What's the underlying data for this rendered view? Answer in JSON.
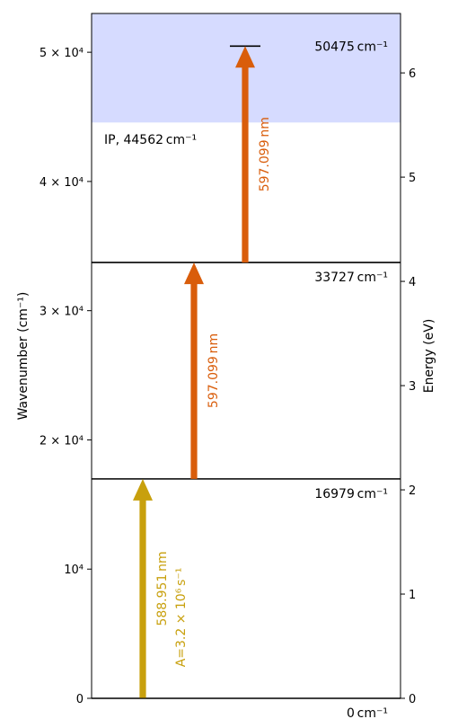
{
  "chart_data": {
    "type": "energy-level-diagram",
    "ylabel_left": "Wavenumber (cm⁻¹)",
    "ylabel_right": "Energy (eV)",
    "ylim_left": [
      0,
      53000
    ],
    "ylim_right_eV": [
      0,
      6.57
    ],
    "left_ticks": [
      {
        "value": 0,
        "label": "0"
      },
      {
        "value": 10000,
        "label": "10⁴"
      },
      {
        "value": 20000,
        "label": "2 × 10⁴"
      },
      {
        "value": 30000,
        "label": "3 × 10⁴"
      },
      {
        "value": 40000,
        "label": "4 × 10⁴"
      },
      {
        "value": 50000,
        "label": "5 × 10⁴"
      }
    ],
    "right_ticks": [
      {
        "value": 0,
        "label": "0"
      },
      {
        "value": 1,
        "label": "1"
      },
      {
        "value": 2,
        "label": "2"
      },
      {
        "value": 3,
        "label": "3"
      },
      {
        "value": 4,
        "label": "4"
      },
      {
        "value": 5,
        "label": "5"
      },
      {
        "value": 6,
        "label": "6"
      }
    ],
    "ionization": {
      "value": 44562,
      "label": "IP, 44562 cm⁻¹",
      "color": "#d6dbff"
    },
    "levels": [
      {
        "value": 0,
        "label": "0 cm⁻¹",
        "style": "full"
      },
      {
        "value": 16979,
        "label": "16979 cm⁻¹",
        "style": "full"
      },
      {
        "value": 33727,
        "label": "33727 cm⁻¹",
        "style": "full"
      },
      {
        "value": 50475,
        "label": "50475 cm⁻¹",
        "style": "short"
      }
    ],
    "transitions": [
      {
        "from": 0,
        "to": 16979,
        "wavelength_label": "588.951 nm",
        "rate_label": "A=3.2 × 10⁶ s⁻¹",
        "color": "#c8a00d",
        "column": 0
      },
      {
        "from": 16979,
        "to": 33727,
        "wavelength_label": "597.099 nm",
        "color": "#d95d0b",
        "column": 1
      },
      {
        "from": 33727,
        "to": 50475,
        "wavelength_label": "597.099 nm",
        "color": "#d95d0b",
        "column": 2
      }
    ]
  }
}
